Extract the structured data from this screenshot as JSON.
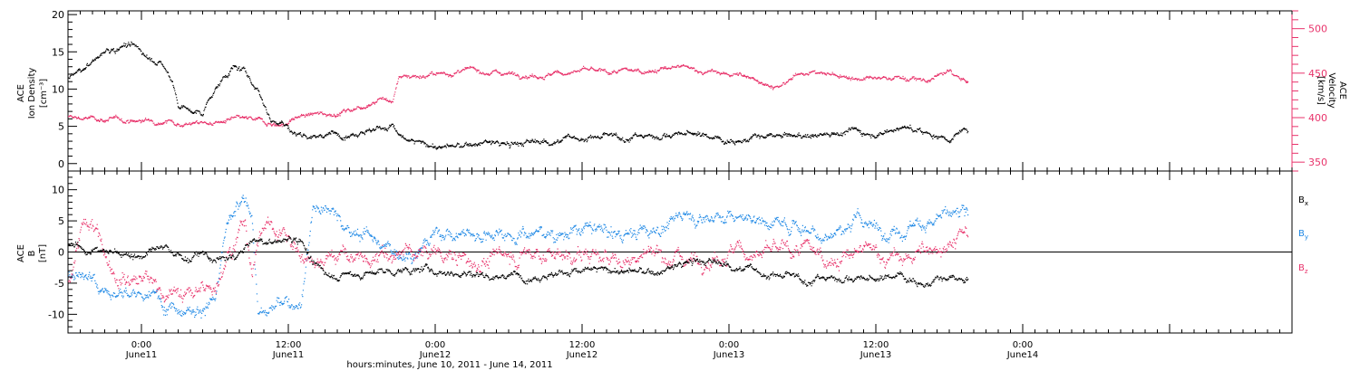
{
  "colors": {
    "black": "#000000",
    "pink": "#e8336b",
    "blue": "#1e88e5"
  },
  "chart_data": [
    {
      "type": "scatter",
      "panel": "top",
      "title": "",
      "x_range_hours": [
        -6,
        94
      ],
      "xlabel": "hours:minutes, June 10, 2011 - June 14, 2011",
      "x_tick_labels": [
        {
          "hours": 0,
          "time": "0:00",
          "date": "June11"
        },
        {
          "hours": 12,
          "time": "12:00",
          "date": "June11"
        },
        {
          "hours": 24,
          "time": "0:00",
          "date": "June12"
        },
        {
          "hours": 36,
          "time": "12:00",
          "date": "June12"
        },
        {
          "hours": 48,
          "time": "0:00",
          "date": "June13"
        },
        {
          "hours": 60,
          "time": "12:00",
          "date": "June13"
        },
        {
          "hours": 72,
          "time": "0:00",
          "date": "June14"
        }
      ],
      "left_axis": {
        "label_lines": [
          "ACE",
          "Ion Density",
          "[cm⁻³]"
        ],
        "range": [
          -1,
          20.5
        ],
        "ticks": [
          0,
          5,
          10,
          15,
          20
        ]
      },
      "right_axis": {
        "label_lines": [
          "ACE",
          "Velocity",
          "[km/s]"
        ],
        "range": [
          340,
          520
        ],
        "ticks": [
          350,
          400,
          450,
          500
        ],
        "color": "#e8336b"
      },
      "series": [
        {
          "axis": "left",
          "color": "#000000",
          "profile": [
            [
              -6,
              11.5
            ],
            [
              -4.5,
              13
            ],
            [
              -3,
              15
            ],
            [
              -1.5,
              16
            ],
            [
              0,
              15
            ],
            [
              1.5,
              13.5
            ],
            [
              2.5,
              11
            ],
            [
              3,
              8
            ],
            [
              4,
              7
            ],
            [
              5,
              6.5
            ],
            [
              5.5,
              9
            ],
            [
              6.5,
              11
            ],
            [
              7.5,
              13
            ],
            [
              8.5,
              12
            ],
            [
              9.5,
              10
            ],
            [
              10,
              8
            ],
            [
              10.5,
              6
            ],
            [
              11.5,
              5.5
            ],
            [
              12.5,
              4
            ],
            [
              15,
              3.8
            ],
            [
              18,
              4.5
            ],
            [
              20.5,
              5
            ],
            [
              21.5,
              3
            ],
            [
              24,
              2.3
            ],
            [
              26,
              2.2
            ],
            [
              28,
              2.8
            ],
            [
              30,
              2.5
            ],
            [
              33,
              3
            ],
            [
              36,
              3.5
            ],
            [
              39,
              3.5
            ],
            [
              42,
              3.8
            ],
            [
              45,
              4
            ],
            [
              48,
              3.2
            ],
            [
              52,
              3.5
            ],
            [
              55,
              3.8
            ],
            [
              58,
              4.5
            ],
            [
              60,
              4
            ],
            [
              62,
              5
            ],
            [
              64,
              4
            ],
            [
              66,
              3.5
            ],
            [
              67.5,
              4.5
            ]
          ],
          "spread": 1.1
        },
        {
          "axis": "right",
          "color": "#e8336b",
          "profile": [
            [
              -6,
              400
            ],
            [
              -3,
              398
            ],
            [
              0,
              396
            ],
            [
              2,
              398
            ],
            [
              3,
              394
            ],
            [
              6,
              394
            ],
            [
              8,
              398
            ],
            [
              10,
              395
            ],
            [
              11.5,
              392
            ],
            [
              13,
              402
            ],
            [
              16,
              405
            ],
            [
              18,
              413
            ],
            [
              19.5,
              423
            ],
            [
              20.5,
              418
            ],
            [
              21,
              447
            ],
            [
              24,
              448
            ],
            [
              27,
              453
            ],
            [
              30,
              450
            ],
            [
              33,
              448
            ],
            [
              36,
              453
            ],
            [
              38,
              450
            ],
            [
              41,
              453
            ],
            [
              44,
              456
            ],
            [
              47,
              450
            ],
            [
              50,
              445
            ],
            [
              52,
              432
            ],
            [
              54,
              452
            ],
            [
              57,
              447
            ],
            [
              60,
              442
            ],
            [
              62,
              446
            ],
            [
              64,
              440
            ],
            [
              66,
              452
            ],
            [
              67.5,
              438
            ]
          ],
          "spread": 7
        }
      ]
    },
    {
      "type": "scatter",
      "panel": "bottom",
      "title": "",
      "x_range_hours": [
        -6,
        94
      ],
      "left_axis": {
        "label_lines": [
          "ACE",
          "B",
          "[nT]"
        ],
        "range": [
          -13,
          13
        ],
        "ticks": [
          -10,
          -5,
          0,
          5,
          10
        ]
      },
      "zero_line": true,
      "legend": [
        "Bx",
        "By",
        "Bz"
      ],
      "series": [
        {
          "name": "Bx",
          "color": "#000000",
          "profile": [
            [
              -6,
              1
            ],
            [
              -3,
              0
            ],
            [
              0,
              -0.5
            ],
            [
              2,
              0.5
            ],
            [
              3.5,
              -1
            ],
            [
              5,
              -0.5
            ],
            [
              6,
              -1.5
            ],
            [
              7.5,
              -1
            ],
            [
              9,
              1.5
            ],
            [
              11,
              1.5
            ],
            [
              13,
              2.5
            ],
            [
              14,
              -2.5
            ],
            [
              16,
              -3.8
            ],
            [
              18,
              -3.5
            ],
            [
              21,
              -3
            ],
            [
              24,
              -3
            ],
            [
              27,
              -3.5
            ],
            [
              30,
              -3.8
            ],
            [
              33,
              -3.5
            ],
            [
              36,
              -3
            ],
            [
              39,
              -3
            ],
            [
              42,
              -3.5
            ],
            [
              45,
              -1.5
            ],
            [
              48,
              -2
            ],
            [
              51,
              -3.5
            ],
            [
              54,
              -4.5
            ],
            [
              57,
              -4
            ],
            [
              60,
              -4.5
            ],
            [
              62,
              -3.5
            ],
            [
              64,
              -5
            ],
            [
              66,
              -4.5
            ],
            [
              67.5,
              -5
            ]
          ],
          "spread": 1.6
        },
        {
          "name": "By",
          "color": "#1e88e5",
          "profile": [
            [
              -6,
              -3
            ],
            [
              -4,
              -3.5
            ],
            [
              -2,
              -6.5
            ],
            [
              1,
              -7.5
            ],
            [
              3,
              -8.5
            ],
            [
              5,
              -8.5
            ],
            [
              6,
              -8
            ],
            [
              7,
              4.5
            ],
            [
              8.5,
              8
            ],
            [
              9,
              6
            ],
            [
              9.5,
              -9.5
            ],
            [
              11,
              -9
            ],
            [
              13,
              -7.5
            ],
            [
              14,
              8
            ],
            [
              15.5,
              7
            ],
            [
              17,
              3
            ],
            [
              19,
              3
            ],
            [
              20,
              0
            ],
            [
              22,
              0
            ],
            [
              24,
              3
            ],
            [
              27,
              3
            ],
            [
              30,
              3.5
            ],
            [
              33,
              3
            ],
            [
              36,
              3.5
            ],
            [
              39,
              3
            ],
            [
              42,
              3.5
            ],
            [
              44,
              6
            ],
            [
              47,
              6
            ],
            [
              50,
              5.5
            ],
            [
              53,
              4.5
            ],
            [
              56,
              3
            ],
            [
              59,
              5
            ],
            [
              61,
              3
            ],
            [
              63,
              5
            ],
            [
              65,
              5
            ],
            [
              67.5,
              5.5
            ]
          ],
          "spread": 3
        },
        {
          "name": "Bz",
          "color": "#e8336b",
          "profile": [
            [
              -6,
              -4.5
            ],
            [
              -5,
              3
            ],
            [
              -4,
              4
            ],
            [
              -2,
              -3
            ],
            [
              0,
              -4
            ],
            [
              2,
              -6
            ],
            [
              4,
              -7.5
            ],
            [
              6,
              -5
            ],
            [
              7.5,
              3
            ],
            [
              8.5,
              5
            ],
            [
              9,
              -3
            ],
            [
              10,
              5
            ],
            [
              11.5,
              3
            ],
            [
              13,
              -1
            ],
            [
              15,
              0
            ],
            [
              17,
              -0.5
            ],
            [
              19,
              -2
            ],
            [
              21,
              0
            ],
            [
              24,
              0
            ],
            [
              27,
              -2
            ],
            [
              30,
              -0.5
            ],
            [
              33,
              0
            ],
            [
              36,
              -0.5
            ],
            [
              39,
              -1.5
            ],
            [
              42,
              0
            ],
            [
              45,
              -1
            ],
            [
              48,
              0.5
            ],
            [
              51,
              -0.5
            ],
            [
              54,
              0
            ],
            [
              57,
              -1
            ],
            [
              60,
              0
            ],
            [
              62,
              -1.5
            ],
            [
              64,
              0
            ],
            [
              66,
              2
            ],
            [
              67.5,
              2.5
            ]
          ],
          "spread": 3.5
        }
      ]
    }
  ]
}
